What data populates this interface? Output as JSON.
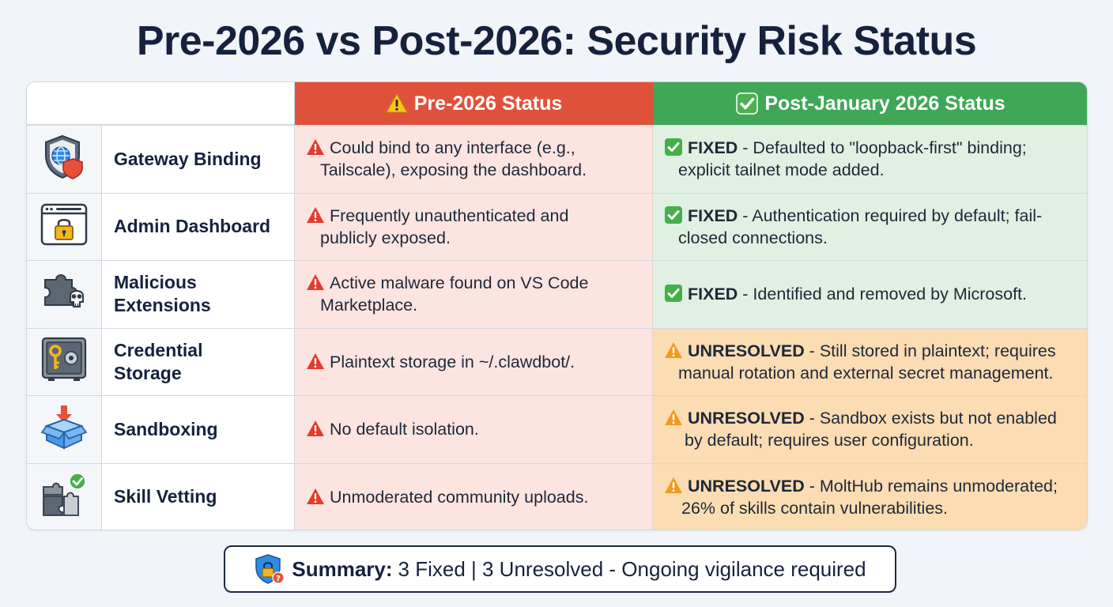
{
  "title": "Pre-2026 vs Post-2026: Security Risk Status",
  "headers": {
    "pre": "Pre-2026 Status",
    "post": "Post-January 2026 Status"
  },
  "colors": {
    "pre_header": "#e0513c",
    "post_header": "#3fa757",
    "pre_cell": "#fce4e1",
    "fixed_cell": "#e0f1e3",
    "unresolved_cell": "#fbdcb3",
    "title": "#16223d"
  },
  "rows": [
    {
      "icon": "globe-shield-icon",
      "feature": "Gateway Binding",
      "pre_first": "Could bind to any interface (e.g.,",
      "pre_rest": "Tailscale), exposing the dashboard.",
      "post_status": "FIXED",
      "post_first": " - Defaulted to \"loopback-first\" binding;",
      "post_rest": "explicit tailnet mode added."
    },
    {
      "icon": "browser-lock-icon",
      "feature": "Admin Dashboard",
      "pre_first": "Frequently unauthenticated and",
      "pre_rest": "publicly exposed.",
      "post_status": "FIXED",
      "post_first": " - Authentication required by default; fail-",
      "post_rest": "closed connections."
    },
    {
      "icon": "puzzle-skull-icon",
      "feature_l1": "Malicious",
      "feature_l2": "Extensions",
      "pre_first": "Active malware found on VS Code",
      "pre_rest": "Marketplace.",
      "post_status": "FIXED",
      "post_first": " - Identified and removed by Microsoft.",
      "post_rest": ""
    },
    {
      "icon": "safe-key-icon",
      "feature_l1": "Credential",
      "feature_l2": "Storage",
      "pre_first": "Plaintext storage in ~/.clawdbot/.",
      "pre_rest": "",
      "post_status": "UNRESOLVED",
      "post_first": " - Still stored in plaintext; requires",
      "post_rest": "manual rotation and external secret management."
    },
    {
      "icon": "box-arrow-icon",
      "feature": "Sandboxing",
      "pre_first": "No default isolation.",
      "pre_rest": "",
      "post_status": "UNRESOLVED",
      "post_first": " - Sandbox exists but not enabled",
      "post_rest": "by default; requires user configuration."
    },
    {
      "icon": "puzzle-check-icon",
      "feature": "Skill Vetting",
      "pre_first": "Unmoderated community uploads.",
      "pre_rest": "",
      "post_status": "UNRESOLVED",
      "post_first": " - MoltHub remains unmoderated;",
      "post_rest": "26% of skills contain vulnerabilities."
    }
  ],
  "summary": {
    "label": "Summary:",
    "text": "3 Fixed | 3 Unresolved - Ongoing vigilance required"
  }
}
